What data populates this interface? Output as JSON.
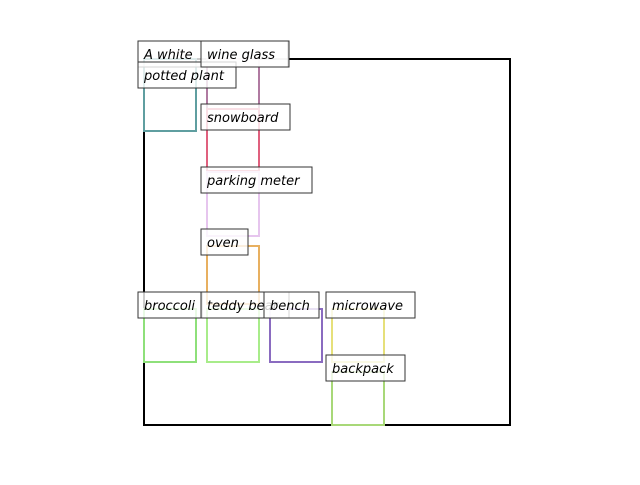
{
  "figure": {
    "frame_color": "#000000",
    "label_box_fill": "#ffffff",
    "label_box_stroke": "#333333",
    "boxes": [
      {
        "id": "a-white",
        "label": "A white",
        "color": "#b0b0b0"
      },
      {
        "id": "potted-plant",
        "label": "potted plant",
        "color": "#5f9ea0"
      },
      {
        "id": "wine-glass",
        "label": "wine glass",
        "color": "#b07aa1"
      },
      {
        "id": "snowboard",
        "label": "snowboard",
        "color": "#e0607e"
      },
      {
        "id": "parking-meter",
        "label": "parking meter",
        "color": "#e6c5ee"
      },
      {
        "id": "oven",
        "label": "oven",
        "color": "#e8b060"
      },
      {
        "id": "broccoli",
        "label": "broccoli",
        "color": "#8ee07a"
      },
      {
        "id": "teddy-bear",
        "label": "teddy bear",
        "color": "#a8ec8a"
      },
      {
        "id": "bench",
        "label": "bench",
        "color": "#8a6bc0"
      },
      {
        "id": "microwave",
        "label": "microwave",
        "color": "#e6e07a"
      },
      {
        "id": "backpack",
        "label": "backpack",
        "color": "#a8d878"
      }
    ]
  }
}
